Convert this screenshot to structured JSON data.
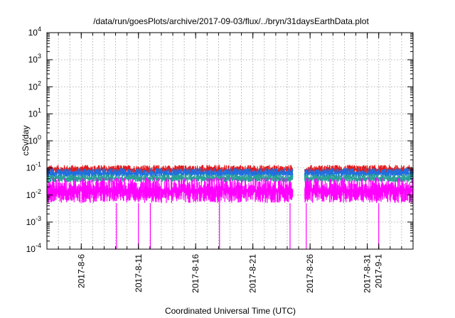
{
  "chart_data": {
    "type": "line",
    "title": "/data/run/goesPlots/archive/2017-09-03/flux/../bryn/31daysEarthData.plot",
    "xlabel": "Coordinated Universal Time (UTC)",
    "ylabel": "cSv/day",
    "yscale": "log",
    "ylim": [
      0.0001,
      10000
    ],
    "xlim": [
      "2017-08-03",
      "2017-09-04"
    ],
    "grid": true,
    "yticks": [
      {
        "value": 0.0001,
        "base": "10",
        "exp": "-4"
      },
      {
        "value": 0.001,
        "base": "10",
        "exp": "-3"
      },
      {
        "value": 0.01,
        "base": "10",
        "exp": "-2"
      },
      {
        "value": 0.1,
        "base": "10",
        "exp": "-1"
      },
      {
        "value": 1,
        "base": "10",
        "exp": "0"
      },
      {
        "value": 10,
        "base": "10",
        "exp": "1"
      },
      {
        "value": 100,
        "base": "10",
        "exp": "2"
      },
      {
        "value": 1000,
        "base": "10",
        "exp": "3"
      },
      {
        "value": 10000,
        "base": "10",
        "exp": "4"
      }
    ],
    "xticks": [
      "2017-8-6",
      "2017-8-11",
      "2017-8-16",
      "2017-8-21",
      "2017-8-26",
      "2017-8-31",
      "2017-9-1"
    ],
    "data_gap": [
      "2017-08-24T12:00",
      "2017-08-25T12:00"
    ],
    "series": [
      {
        "color": "#e41a1c",
        "min": 0.06,
        "max": 0.13,
        "typical": 0.085
      },
      {
        "color": "#1f6fe0",
        "min": 0.045,
        "max": 0.1,
        "typical": 0.065
      },
      {
        "color": "#2aa198",
        "min": 0.03,
        "max": 0.06,
        "typical": 0.042
      },
      {
        "color": "#ff00ff",
        "min": 0.005,
        "max": 0.045,
        "typical": 0.015,
        "dropouts": [
          "2017-08-09T02:00",
          "2017-08-11T00:00",
          "2017-08-12T01:00",
          "2017-08-18T02:00",
          "2017-08-24T06:00",
          "2017-08-25T16:00",
          "2017-09-01T00:00"
        ]
      }
    ]
  }
}
